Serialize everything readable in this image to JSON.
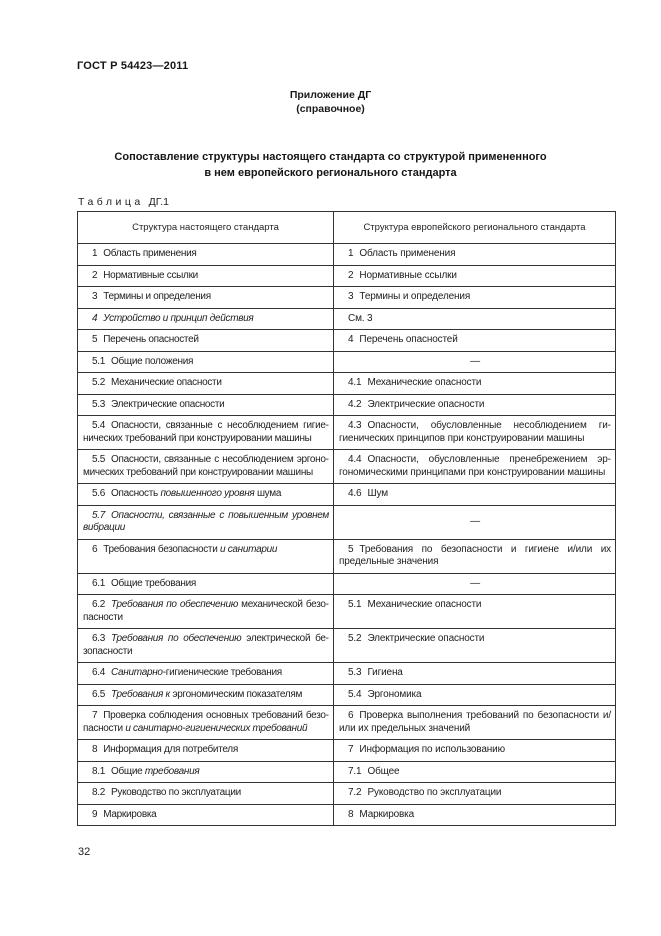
{
  "page": {
    "doc_number": "ГОСТ Р 54423—2011",
    "appendix_title": "Приложение ДГ",
    "appendix_subtitle": "(справочное)",
    "title_lines": [
      "Сопоставление структуры настоящего стандарта со структурой примененного",
      "в нем европейского регионального стандарта"
    ],
    "table_caption": {
      "label": "Таблица",
      "number": "ДГ.1"
    },
    "page_number": "32"
  },
  "table": {
    "headers": [
      "Структура настоящего стандарта",
      "Структура европейского регионального стандарта"
    ],
    "dash_glyph": "—",
    "rows": [
      {
        "left": {
          "num": "1",
          "segments": [
            {
              "text": "Область применения",
              "italic": false
            }
          ]
        },
        "right": {
          "num": "1",
          "segments": [
            {
              "text": "Область применения",
              "italic": false
            }
          ]
        }
      },
      {
        "left": {
          "num": "2",
          "segments": [
            {
              "text": "Нормативные ссылки",
              "italic": false
            }
          ]
        },
        "right": {
          "num": "2",
          "segments": [
            {
              "text": "Нормативные ссылки",
              "italic": false
            }
          ]
        }
      },
      {
        "left": {
          "num": "3",
          "segments": [
            {
              "text": "Термины и определения",
              "italic": false
            }
          ]
        },
        "right": {
          "num": "3",
          "segments": [
            {
              "text": "Термины и определения",
              "italic": false
            }
          ]
        }
      },
      {
        "left": {
          "num": "4",
          "num_italic": true,
          "segments": [
            {
              "text": "Устройство и принцип действия",
              "italic": true
            }
          ]
        },
        "right": {
          "segments": [
            {
              "text": "См. 3",
              "italic": false
            }
          ]
        }
      },
      {
        "left": {
          "num": "5",
          "segments": [
            {
              "text": "Перечень опасностей",
              "italic": false
            }
          ]
        },
        "right": {
          "num": "4",
          "segments": [
            {
              "text": "Перечень опасностей",
              "italic": false
            }
          ]
        }
      },
      {
        "left": {
          "num": "5.1",
          "segments": [
            {
              "text": "Общие положения",
              "italic": false
            }
          ]
        },
        "right": {
          "dash": true
        }
      },
      {
        "left": {
          "num": "5.2",
          "segments": [
            {
              "text": "Механические опасности",
              "italic": false
            }
          ]
        },
        "right": {
          "num": "4.1",
          "segments": [
            {
              "text": "Механические опасности",
              "italic": false
            }
          ]
        }
      },
      {
        "left": {
          "num": "5.3",
          "segments": [
            {
              "text": "Электрические опасности",
              "italic": false
            }
          ]
        },
        "right": {
          "num": "4.2",
          "segments": [
            {
              "text": "Электрические опасности",
              "italic": false
            }
          ]
        }
      },
      {
        "left": {
          "num": "5.4",
          "segments": [
            {
              "text": "Опасности, связанные с несоблюдением гигие­нических требований при конструировании машины",
              "italic": false
            }
          ]
        },
        "right": {
          "num": "4.3",
          "segments": [
            {
              "text": "Опасности, обусловленные несоблюдением ги­гиенических принципов при конструировании машины",
              "italic": false
            }
          ]
        }
      },
      {
        "left": {
          "num": "5.5",
          "segments": [
            {
              "text": "Опасности, связанные с несоблюдением эргоно­мических требований при конструировании машины",
              "italic": false
            }
          ]
        },
        "right": {
          "num": "4.4",
          "segments": [
            {
              "text": "Опасности, обусловленные пренебрежением эр­гономическими принципами при конструировании ма­шины",
              "italic": false
            }
          ]
        }
      },
      {
        "left": {
          "num": "5.6",
          "segments": [
            {
              "text": "Опасность ",
              "italic": false
            },
            {
              "text": "повышенного уровня",
              "italic": true
            },
            {
              "text": " шума",
              "italic": false
            }
          ]
        },
        "right": {
          "num": "4.6",
          "segments": [
            {
              "text": "Шум",
              "italic": false
            }
          ]
        }
      },
      {
        "left": {
          "num": "5.7",
          "num_italic": true,
          "segments": [
            {
              "text": "Опасности, связанные с повышенным уровнем вибрации",
              "italic": true
            }
          ]
        },
        "right": {
          "dash": true
        }
      },
      {
        "left": {
          "num": "6",
          "segments": [
            {
              "text": "Требования безопасности ",
              "italic": false
            },
            {
              "text": "и санитарии",
              "italic": true
            }
          ]
        },
        "right": {
          "num": "5",
          "segments": [
            {
              "text": "Требования по безопасности и гигиене и/или их предельные значения",
              "italic": false
            }
          ]
        }
      },
      {
        "left": {
          "num": "6.1",
          "segments": [
            {
              "text": "Общие требования",
              "italic": false
            }
          ]
        },
        "right": {
          "dash": true
        }
      },
      {
        "left": {
          "num": "6.2",
          "segments": [
            {
              "text": "Требования по обеспечению",
              "italic": true
            },
            {
              "text": " механической безо­пасности",
              "italic": false
            }
          ]
        },
        "right": {
          "num": "5.1",
          "segments": [
            {
              "text": "Механические опасности",
              "italic": false
            }
          ]
        }
      },
      {
        "left": {
          "num": "6.3",
          "segments": [
            {
              "text": "Требования по обеспечению",
              "italic": true
            },
            {
              "text": " электрической бе­зопасности",
              "italic": false
            }
          ]
        },
        "right": {
          "num": "5.2",
          "segments": [
            {
              "text": "Электрические опасности",
              "italic": false
            }
          ]
        }
      },
      {
        "left": {
          "num": "6.4",
          "segments": [
            {
              "text": "Санитарно",
              "italic": true
            },
            {
              "text": "-гигиенические требования",
              "italic": false
            }
          ]
        },
        "right": {
          "num": "5.3",
          "segments": [
            {
              "text": "Гигиена",
              "italic": false
            }
          ]
        }
      },
      {
        "left": {
          "num": "6.5",
          "segments": [
            {
              "text": "Требования к",
              "italic": true
            },
            {
              "text": " эргономическим показателям",
              "italic": false
            }
          ]
        },
        "right": {
          "num": "5.4",
          "segments": [
            {
              "text": "Эргономика",
              "italic": false
            }
          ]
        }
      },
      {
        "left": {
          "num": "7",
          "segments": [
            {
              "text": "Проверка соблюдения основных требований безо­пасности ",
              "italic": false
            },
            {
              "text": "и санитарно-гигиенических требований",
              "italic": true
            }
          ]
        },
        "right": {
          "num": "6",
          "segments": [
            {
              "text": "Проверка выполнения требований по безопаснос­ти и/или их предельных значений",
              "italic": false
            }
          ]
        }
      },
      {
        "left": {
          "num": "8",
          "segments": [
            {
              "text": "Информация для потребителя",
              "italic": false
            }
          ]
        },
        "right": {
          "num": "7",
          "segments": [
            {
              "text": "Информация по использованию",
              "italic": false
            }
          ]
        }
      },
      {
        "left": {
          "num": "8.1",
          "segments": [
            {
              "text": "Общие ",
              "italic": false
            },
            {
              "text": "требования",
              "italic": true
            }
          ]
        },
        "right": {
          "num": "7.1",
          "segments": [
            {
              "text": "Общее",
              "italic": false
            }
          ]
        }
      },
      {
        "left": {
          "num": "8.2",
          "segments": [
            {
              "text": "Руководство по эксплуатации",
              "italic": false
            }
          ]
        },
        "right": {
          "num": "7.2",
          "segments": [
            {
              "text": "Руководство по эксплуатации",
              "italic": false
            }
          ]
        }
      },
      {
        "left": {
          "num": "9",
          "segments": [
            {
              "text": "Маркировка",
              "italic": false
            }
          ]
        },
        "right": {
          "num": "8",
          "segments": [
            {
              "text": "Маркировка",
              "italic": false
            }
          ]
        }
      }
    ]
  }
}
